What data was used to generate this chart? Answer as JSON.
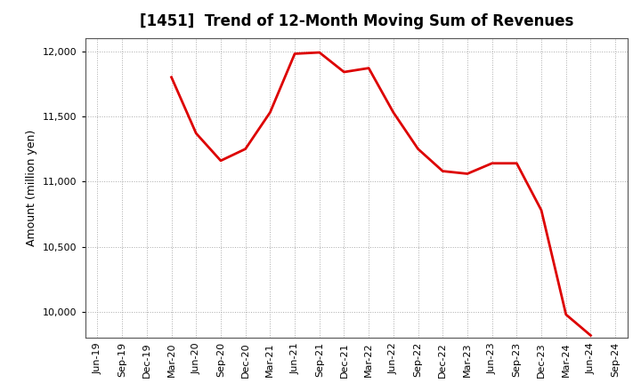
{
  "title": "[1451]  Trend of 12-Month Moving Sum of Revenues",
  "ylabel": "Amount (million yen)",
  "line_color": "#dd0000",
  "line_width": 2.0,
  "background_color": "#ffffff",
  "grid_color": "#aaaaaa",
  "ylim": [
    9800,
    12100
  ],
  "yticks": [
    10000,
    10500,
    11000,
    11500,
    12000
  ],
  "x_labels": [
    "Jun-19",
    "Sep-19",
    "Dec-19",
    "Mar-20",
    "Jun-20",
    "Sep-20",
    "Dec-20",
    "Mar-21",
    "Jun-21",
    "Sep-21",
    "Dec-21",
    "Mar-22",
    "Jun-22",
    "Sep-22",
    "Dec-22",
    "Mar-23",
    "Jun-23",
    "Sep-23",
    "Dec-23",
    "Mar-24",
    "Jun-24",
    "Sep-24"
  ],
  "data_x": [
    "Jun-19",
    "Sep-19",
    "Dec-19",
    "Mar-20",
    "Jun-20",
    "Sep-20",
    "Dec-20",
    "Mar-21",
    "Jun-21",
    "Sep-21",
    "Dec-21",
    "Mar-22",
    "Jun-22",
    "Sep-22",
    "Dec-22",
    "Mar-23",
    "Jun-23",
    "Sep-23",
    "Dec-23",
    "Mar-24",
    "Jun-24"
  ],
  "data_y": [
    null,
    null,
    null,
    11800,
    11370,
    11160,
    11250,
    11530,
    11980,
    11990,
    11840,
    11870,
    11530,
    11250,
    11080,
    11060,
    11140,
    11140,
    10780,
    9980,
    9820
  ]
}
